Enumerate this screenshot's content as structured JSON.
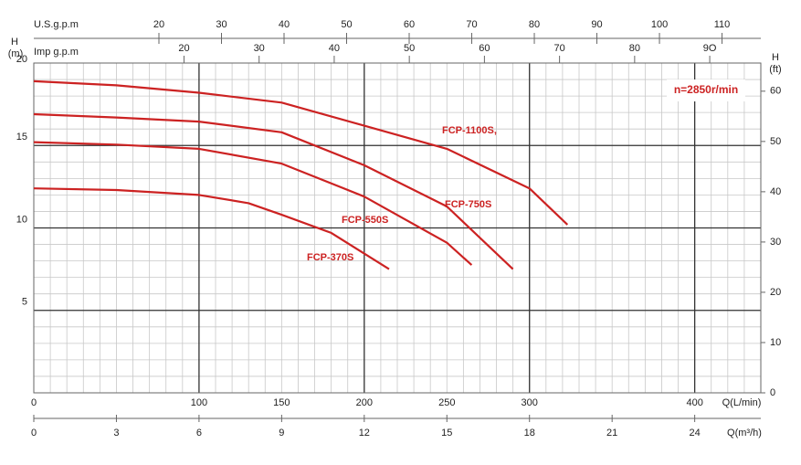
{
  "chart_data": {
    "type": "line",
    "annotation": "n=2850r/min",
    "x_label": "Q(L/min)",
    "xlim": [
      0,
      440
    ],
    "xticks": [
      0,
      100,
      150,
      200,
      250,
      300,
      400
    ],
    "xgrid": [
      100,
      200,
      300,
      400
    ],
    "y_label": "H",
    "y_unit": "(m)",
    "ylim": [
      0,
      20
    ],
    "yticks": [
      5,
      10,
      15,
      20
    ],
    "ygrid": [
      5,
      10,
      15
    ],
    "y2_label": "H",
    "y2_unit": "(ft)",
    "y2lim": [
      0,
      65.6
    ],
    "y2ticks": [
      0,
      10,
      20,
      30,
      40,
      50,
      60
    ],
    "x2_label": "Q(m³/h)",
    "x2lim": [
      0,
      26.4
    ],
    "x2ticks": [
      0,
      3,
      6,
      9,
      12,
      15,
      18,
      21,
      24
    ],
    "x3_label": "U.S.g.p.m",
    "x3lim": [
      0,
      116.2
    ],
    "x3ticks": [
      20,
      30,
      40,
      50,
      60,
      70,
      80,
      90,
      100,
      110
    ],
    "x4_label": "Imp g.p.m",
    "x4lim": [
      0,
      96.8
    ],
    "x4ticks": [
      20,
      30,
      40,
      50,
      60,
      70,
      80,
      {
        "value": 90,
        "label": "9O"
      }
    ],
    "series": [
      {
        "name": "FCP-1100S,",
        "color": "#cc2222",
        "x": [
          0,
          50,
          100,
          150,
          200,
          250,
          300,
          323
        ],
        "values": [
          18.9,
          18.65,
          18.2,
          17.6,
          16.2,
          14.8,
          12.4,
          10.2
        ]
      },
      {
        "name": "FCP-750S",
        "color": "#cc2222",
        "x": [
          0,
          50,
          100,
          150,
          200,
          250,
          290
        ],
        "values": [
          16.9,
          16.7,
          16.45,
          15.8,
          13.8,
          11.3,
          7.5
        ]
      },
      {
        "name": "FCP-550S",
        "color": "#cc2222",
        "x": [
          0,
          50,
          100,
          150,
          200,
          250,
          265
        ],
        "values": [
          15.2,
          15.05,
          14.8,
          13.9,
          11.9,
          9.1,
          7.75
        ]
      },
      {
        "name": "FCP-370S",
        "color": "#cc2222",
        "x": [
          0,
          50,
          100,
          130,
          150,
          180,
          215
        ],
        "values": [
          12.4,
          12.3,
          12.0,
          11.5,
          10.8,
          9.7,
          7.5
        ]
      }
    ]
  }
}
